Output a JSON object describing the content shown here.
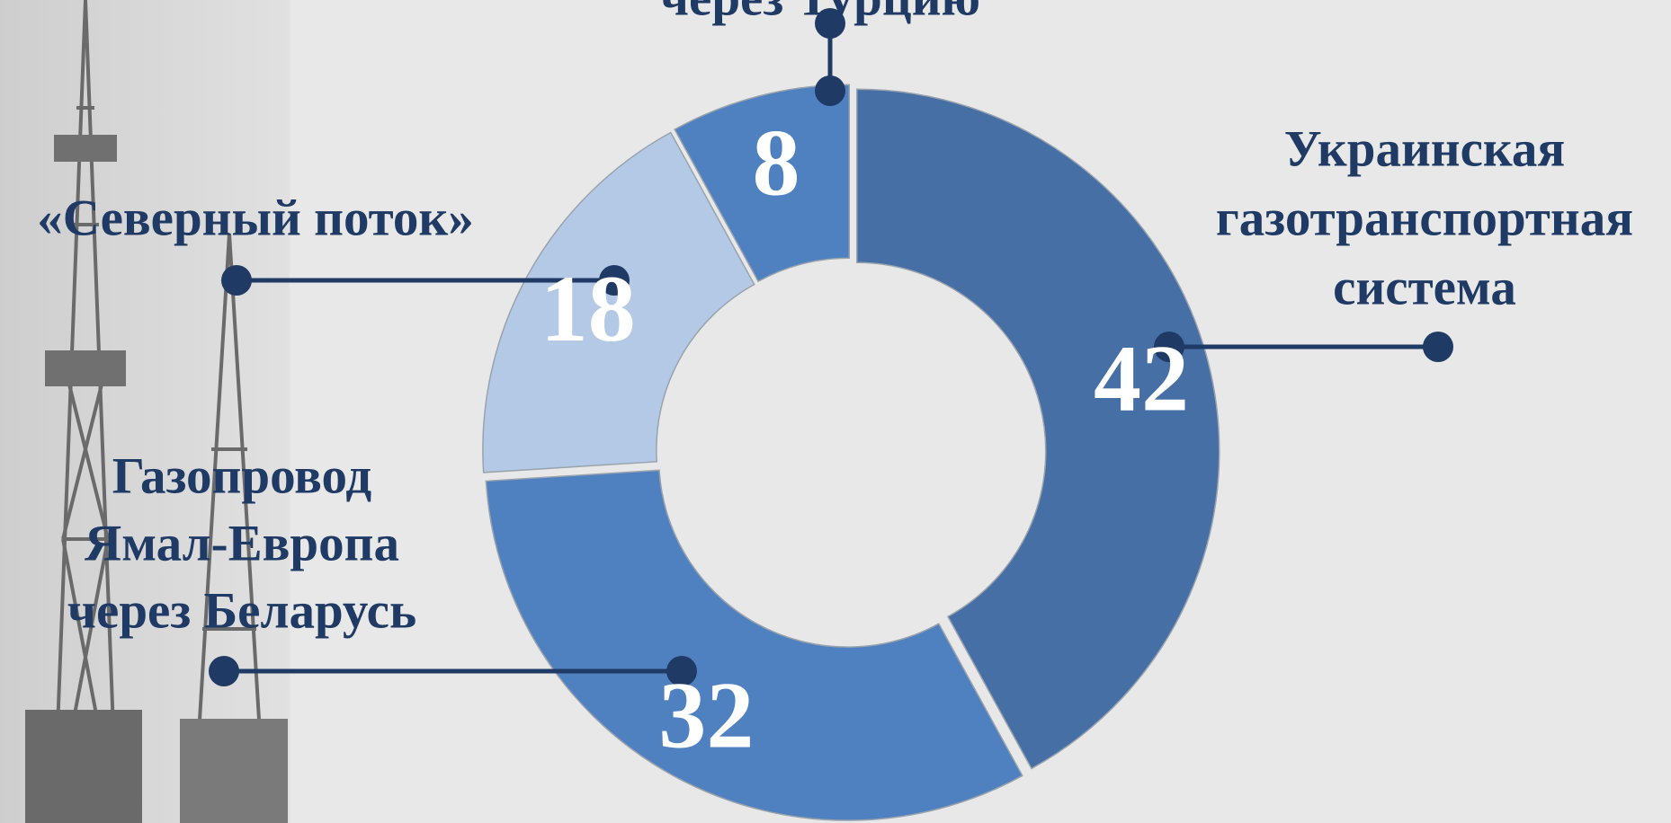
{
  "chart_data": {
    "type": "donut",
    "categories": [
      [
        "Украинская",
        "газотранспортная",
        "система"
      ],
      [
        "Газопровод",
        "Ямал-Европа",
        "через Беларусь"
      ],
      [
        "«Северный поток»"
      ],
      [
        "через Турцию"
      ]
    ],
    "values": [
      42,
      32,
      18,
      8
    ],
    "colors": [
      "#466fa6",
      "#4f81c0",
      "#b3c9e5",
      "#4f81c0"
    ]
  }
}
